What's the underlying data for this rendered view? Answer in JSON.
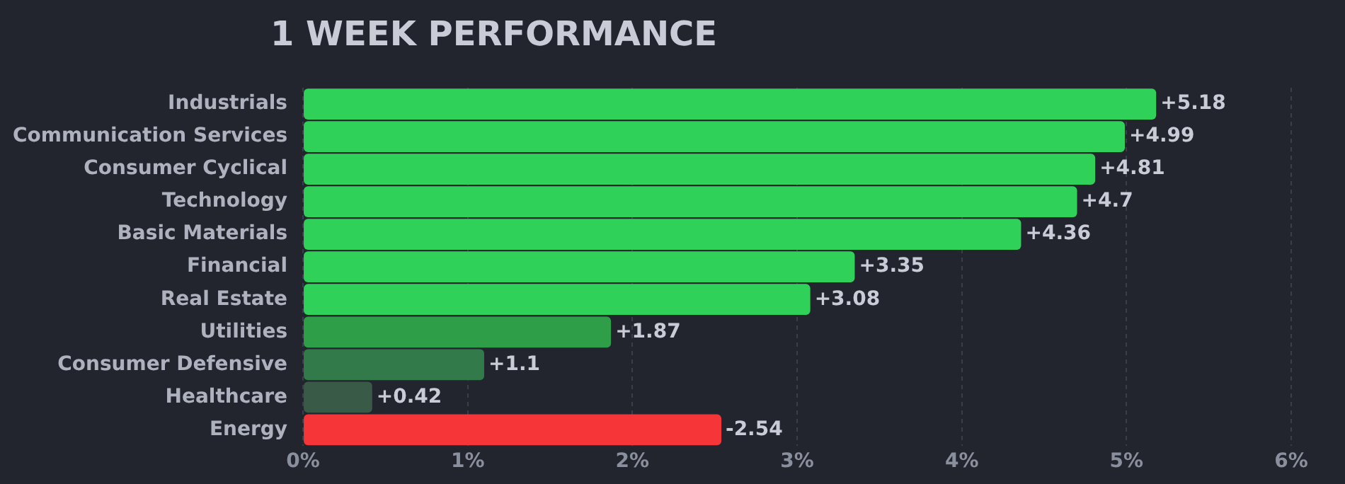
{
  "chart_data": {
    "type": "bar",
    "orientation": "horizontal",
    "title": "1 WEEK PERFORMANCE",
    "categories": [
      "Industrials",
      "Communication Services",
      "Consumer Cyclical",
      "Technology",
      "Basic Materials",
      "Financial",
      "Real Estate",
      "Utilities",
      "Consumer Defensive",
      "Healthcare",
      "Energy"
    ],
    "values": [
      5.18,
      4.99,
      4.81,
      4.7,
      4.36,
      3.35,
      3.08,
      1.87,
      1.1,
      0.42,
      -2.54
    ],
    "base": [
      0,
      0,
      0,
      0,
      0,
      0,
      0,
      0,
      0,
      0,
      2.54
    ],
    "colors": [
      "#30d158",
      "#30d158",
      "#30d158",
      "#30d158",
      "#30d158",
      "#30d158",
      "#30d158",
      "#2e9e48",
      "#327a4a",
      "#3a5a48",
      "#f53538"
    ],
    "value_labels": [
      "+5.18",
      "+4.99",
      "+4.81",
      "+4.7",
      "+4.36",
      "+3.35",
      "+3.08",
      "+1.87",
      "+1.1",
      "+0.42",
      "-2.54"
    ],
    "xlim": [
      0,
      6
    ],
    "xticks": [
      {
        "value": 0,
        "label": "0%"
      },
      {
        "value": 1,
        "label": "1%"
      },
      {
        "value": 2,
        "label": "2%"
      },
      {
        "value": 3,
        "label": "3%"
      },
      {
        "value": 4,
        "label": "4%"
      },
      {
        "value": 5,
        "label": "5%"
      },
      {
        "value": 6,
        "label": "6%"
      }
    ],
    "grid": "x",
    "legend": false
  }
}
